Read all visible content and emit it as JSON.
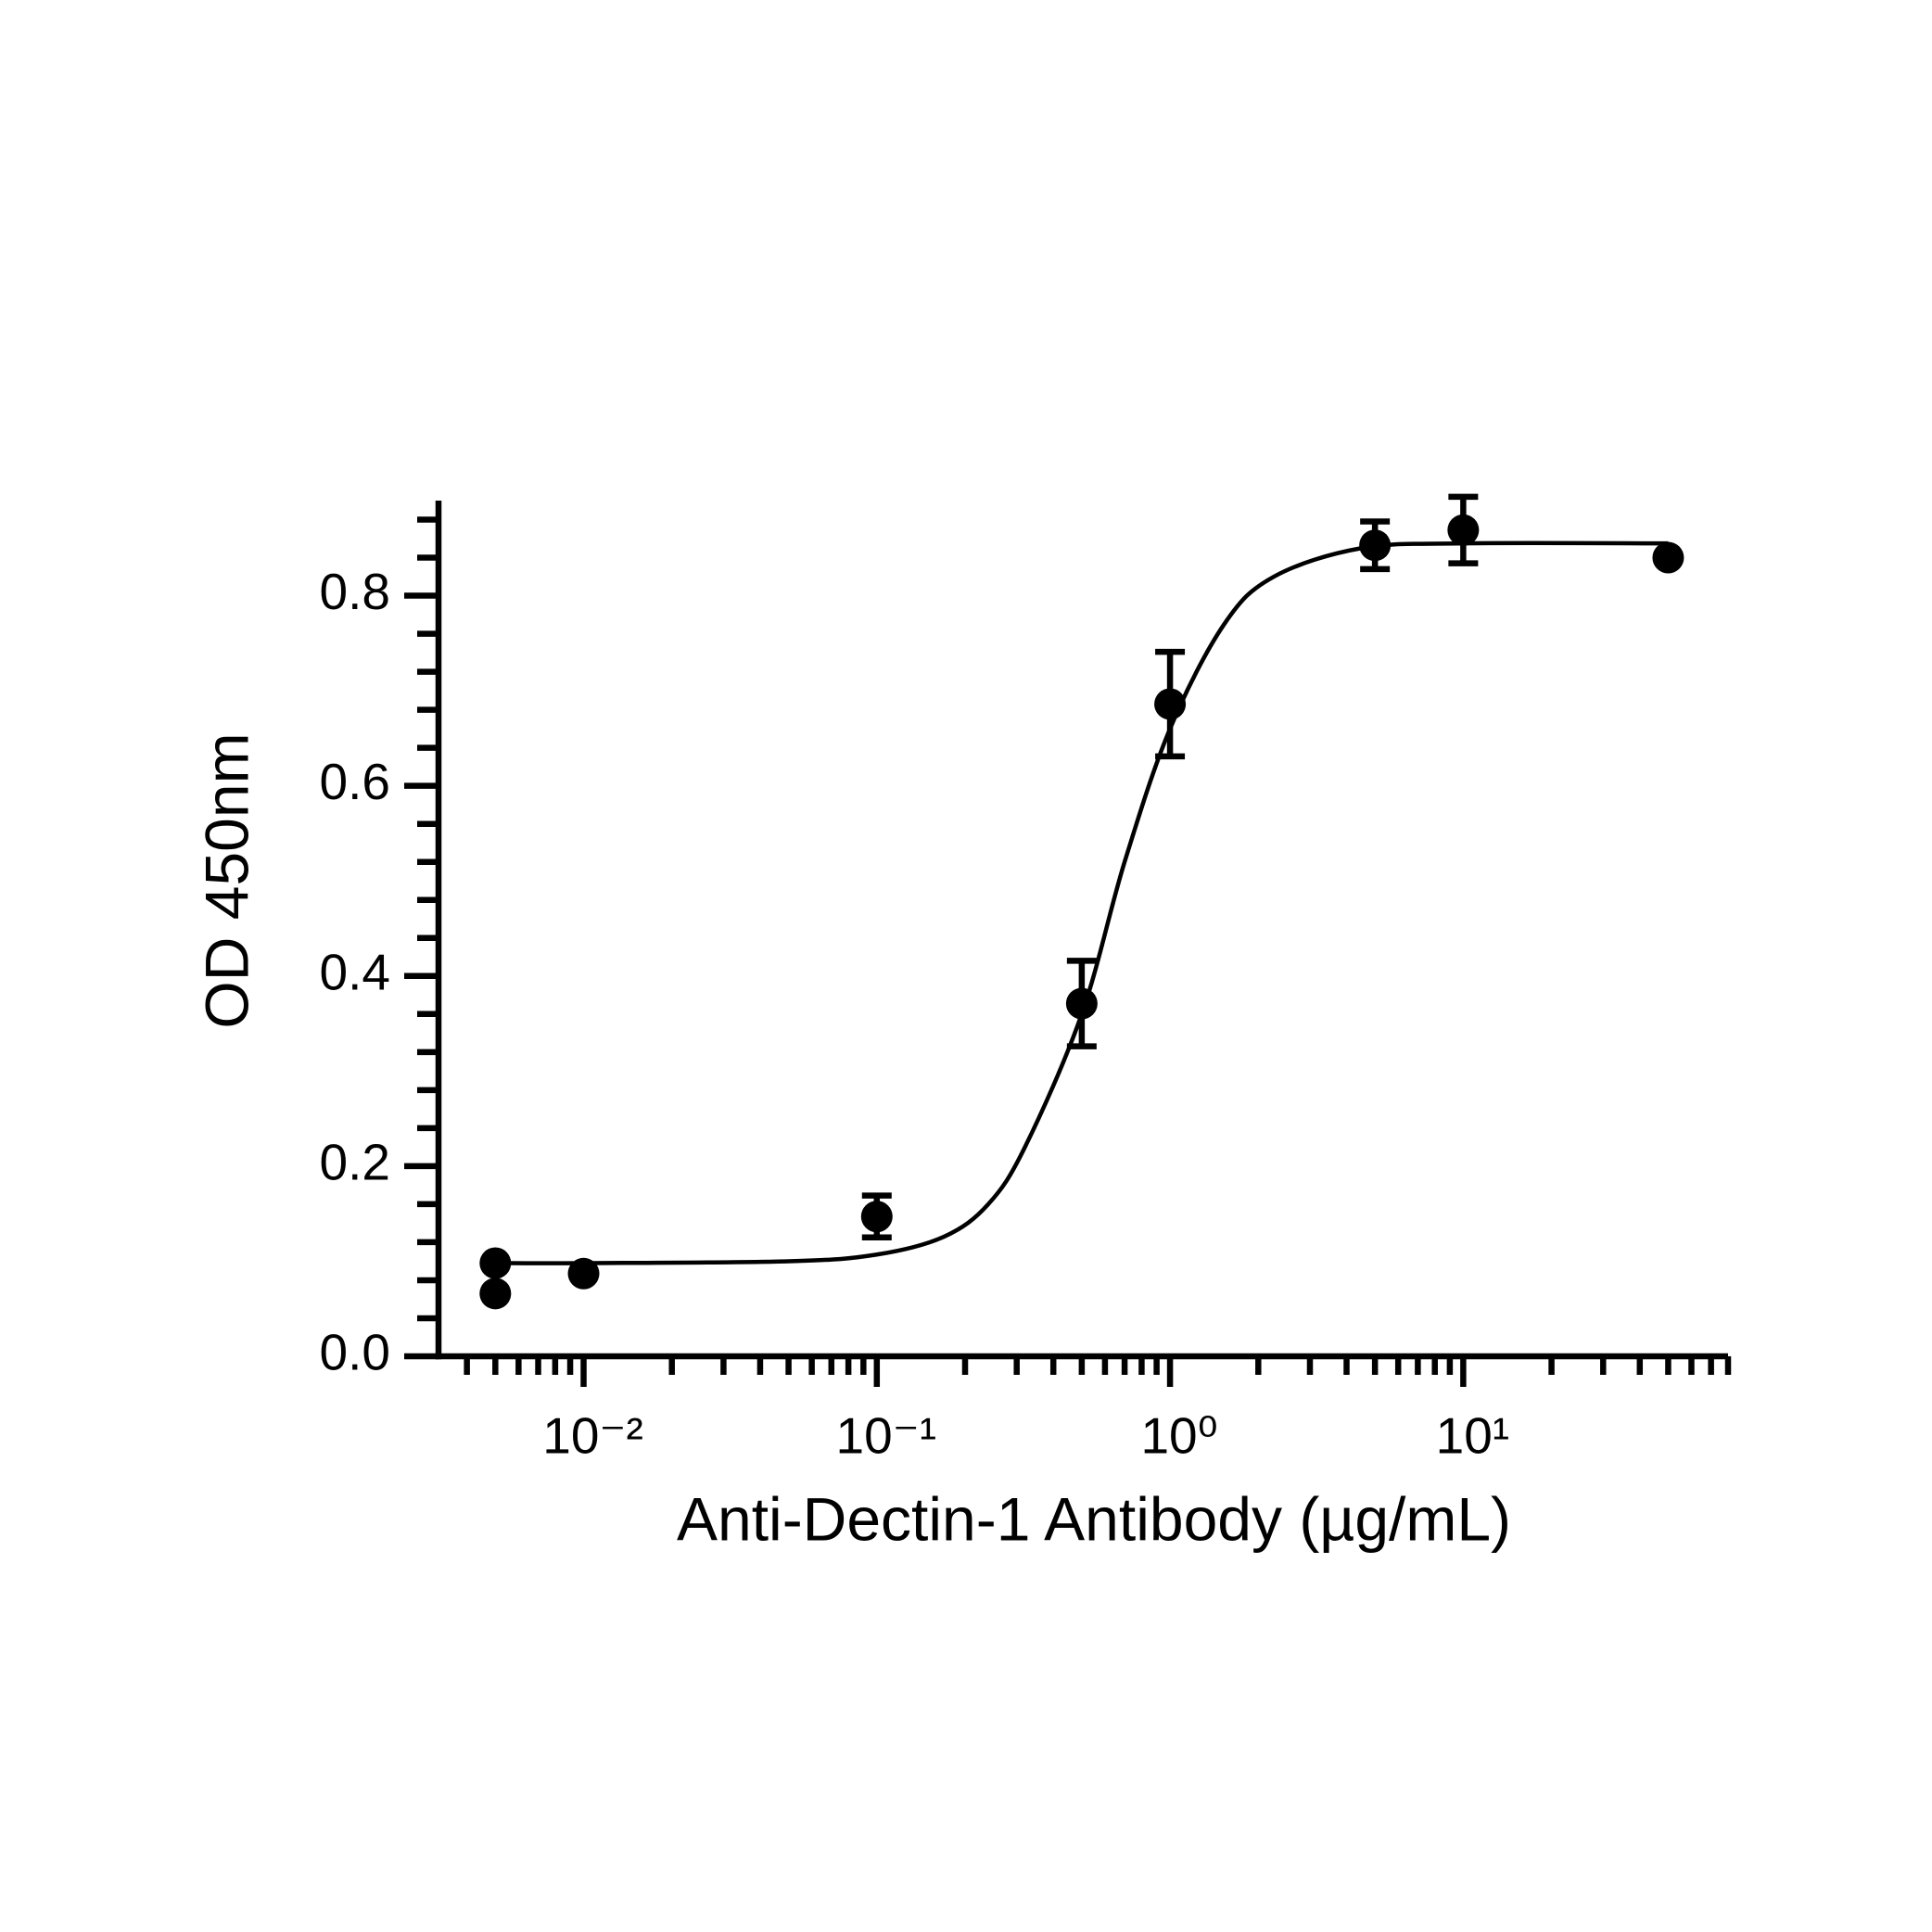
{
  "chart_data": {
    "type": "scatter",
    "x_label": "Anti-Dectin-1 Antibody (µg/mL)",
    "y_label": "OD 450nm",
    "x_log": true,
    "xlim": [
      0.0032,
      80
    ],
    "ylim": [
      0,
      0.9
    ],
    "xticks": [
      {
        "value": 0.01,
        "label": "10⁻²"
      },
      {
        "value": 0.1,
        "label": "10⁻¹"
      },
      {
        "value": 1,
        "label": "10⁰"
      },
      {
        "value": 10,
        "label": "10¹"
      }
    ],
    "xminor_ticks": [
      0.004,
      0.005,
      0.006,
      0.007,
      0.008,
      0.009,
      0.02,
      0.03,
      0.04,
      0.05,
      0.06,
      0.07,
      0.08,
      0.09,
      0.2,
      0.3,
      0.4,
      0.5,
      0.6,
      0.7,
      0.8,
      0.9,
      2,
      3,
      4,
      5,
      6,
      7,
      8,
      9,
      20,
      30,
      40,
      50,
      60,
      70,
      80
    ],
    "yticks": [
      {
        "value": 0,
        "label": "0.0"
      },
      0.2,
      0.4,
      0.6,
      0.8
    ],
    "yminor_ticks": [
      0.04,
      0.08,
      0.12,
      0.16,
      0.24,
      0.28,
      0.32,
      0.36,
      0.44,
      0.48,
      0.52,
      0.56,
      0.64,
      0.68,
      0.72,
      0.76,
      0.84,
      0.88
    ],
    "color": "#000000",
    "points": {
      "x": [
        0.005,
        0.005,
        0.01,
        0.1,
        0.5,
        1,
        5,
        10,
        50
      ],
      "values": [
        0.098,
        0.066,
        0.087,
        0.147,
        0.371,
        0.686,
        0.853,
        0.869,
        0.84
      ],
      "errors": [
        null,
        null,
        null,
        0.022,
        0.045,
        0.055,
        0.025,
        0.035,
        null
      ]
    },
    "fit": {
      "x": [
        0.005,
        0.01,
        0.05,
        0.1,
        0.17,
        0.24,
        0.32,
        0.5,
        0.7,
        1,
        1.53,
        2.26,
        4.5,
        10,
        50
      ],
      "values": [
        0.098,
        0.098,
        0.1,
        0.107,
        0.126,
        0.16,
        0.22,
        0.36,
        0.52,
        0.66,
        0.77,
        0.82,
        0.85,
        0.855,
        0.855
      ]
    }
  }
}
